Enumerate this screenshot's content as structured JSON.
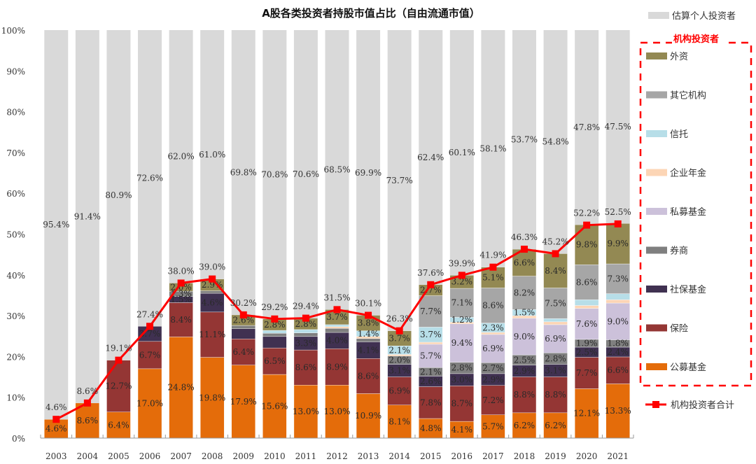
{
  "chart_data": {
    "type": "bar",
    "stacked": true,
    "title": "A股各类投资者持股市值占比（自由流通市值）",
    "xlabel": "",
    "ylabel": "",
    "ylim": [
      0,
      100
    ],
    "yticks": [
      "0%",
      "10%",
      "20%",
      "30%",
      "40%",
      "50%",
      "60%",
      "70%",
      "80%",
      "90%",
      "100%"
    ],
    "grid": false,
    "legend_position": "right",
    "categories": [
      "2003",
      "2004",
      "2005",
      "2006",
      "2007",
      "2008",
      "2009",
      "2010",
      "2011",
      "2012",
      "2013",
      "2014",
      "2015",
      "2016",
      "2017",
      "2018",
      "2019",
      "2020",
      "2021"
    ],
    "series": [
      {
        "name": "公募基金",
        "color": "#E46C0A",
        "values": [
          4.6,
          8.6,
          6.4,
          17.0,
          24.8,
          19.8,
          17.9,
          15.6,
          13.0,
          13.0,
          10.9,
          8.1,
          4.8,
          4.1,
          5.7,
          6.2,
          6.2,
          12.1,
          13.3
        ],
        "labels": [
          "4.6%",
          "8.6%",
          "6.4%",
          "17.0%",
          "24.8%",
          "19.8%",
          "17.9%",
          "15.6%",
          "13.0%",
          "13.0%",
          "10.9%",
          "8.1%",
          "4.8%",
          "4.1%",
          "5.7%",
          "6.2%",
          "6.2%",
          "12.1%",
          "13.3%"
        ]
      },
      {
        "name": "保险",
        "color": "#943634",
        "values": [
          0,
          0,
          12.7,
          6.7,
          8.4,
          11.1,
          6.4,
          6.5,
          8.6,
          8.9,
          8.6,
          6.9,
          7.8,
          8.7,
          7.2,
          8.8,
          8.8,
          7.7,
          6.6
        ],
        "labels": [
          null,
          null,
          "12.7%",
          "6.7%",
          "8.4%",
          "11.1%",
          "6.4%",
          "6.5%",
          "8.6%",
          "8.9%",
          "8.6%",
          "6.9%",
          "7.8%",
          "8.7%",
          "7.2%",
          "8.8%",
          "8.8%",
          "7.7%",
          "6.6%"
        ]
      },
      {
        "name": "社保基金",
        "color": "#403151",
        "values": [
          0,
          0,
          0,
          3.7,
          1.5,
          4.6,
          2.5,
          2.8,
          3.3,
          4.0,
          4.1,
          3.1,
          2.6,
          3.0,
          2.9,
          2.9,
          3.1,
          2.5,
          2.4
        ],
        "labels": [
          null,
          null,
          null,
          "3.7%",
          "1.5%",
          "4.6%",
          null,
          null,
          "3.3%",
          "4.0%",
          "4.1%",
          "3.1%",
          "2.6%",
          "3.0%",
          "2.9%",
          "2.9%",
          "3.1%",
          "2.5%",
          "2.4%"
        ]
      },
      {
        "name": "券商",
        "color": "#7F7F7F",
        "values": [
          0,
          0,
          0,
          0,
          1.3,
          0.6,
          0.8,
          0.8,
          0.9,
          1.0,
          0.8,
          2.0,
          2.1,
          2.8,
          2.7,
          2.5,
          2.8,
          1.9,
          1.8
        ],
        "labels": [
          null,
          null,
          null,
          null,
          "1.3%",
          null,
          null,
          null,
          null,
          null,
          null,
          "2.0%",
          "2.1%",
          "2.8%",
          "2.7%",
          "2.5%",
          "2.8%",
          "1.9%",
          "1.8%"
        ]
      },
      {
        "name": "私募基金",
        "color": "#CCC1DA",
        "values": [
          0,
          0,
          0,
          0,
          0,
          0,
          0,
          0,
          0,
          0,
          0,
          0,
          5.7,
          9.4,
          6.9,
          9.0,
          6.9,
          7.6,
          9.0
        ],
        "labels": [
          null,
          null,
          null,
          null,
          null,
          null,
          null,
          null,
          null,
          null,
          null,
          null,
          "5.7%",
          "9.4%",
          "6.9%",
          "9.0%",
          "6.9%",
          "7.6%",
          "9.0%"
        ]
      },
      {
        "name": "企业年金",
        "color": "#FCD5B5",
        "values": [
          0,
          0,
          0,
          0,
          0,
          0,
          0,
          0,
          0,
          0.4,
          0.5,
          0.4,
          0.5,
          0.4,
          0.5,
          0.6,
          0.7,
          0.7,
          0.8
        ],
        "labels": [
          null,
          null,
          null,
          null,
          null,
          null,
          null,
          null,
          null,
          null,
          null,
          null,
          null,
          null,
          null,
          null,
          null,
          null,
          null
        ]
      },
      {
        "name": "信托",
        "color": "#B7DEE8",
        "values": [
          0,
          0,
          0,
          0,
          0,
          0,
          0,
          0.7,
          0.8,
          0.5,
          1.4,
          2.1,
          3.7,
          1.2,
          2.3,
          1.5,
          0.8,
          1.4,
          1.5
        ],
        "labels": [
          null,
          null,
          null,
          null,
          null,
          null,
          null,
          null,
          null,
          null,
          "1.4%",
          "2.1%",
          "3.7%",
          "1.2%",
          "2.3%",
          "1.5%",
          null,
          null,
          null
        ]
      },
      {
        "name": "其它机构",
        "color": "#A6A6A6",
        "values": [
          0,
          0,
          0,
          0,
          0,
          0,
          0,
          0,
          0,
          0,
          0,
          0,
          7.7,
          7.1,
          8.6,
          8.2,
          7.5,
          8.6,
          7.3
        ],
        "labels": [
          null,
          null,
          null,
          null,
          null,
          null,
          null,
          null,
          null,
          null,
          null,
          null,
          "7.7%",
          "7.1%",
          "8.6%",
          "8.2%",
          "7.5%",
          "8.6%",
          "7.3%"
        ]
      },
      {
        "name": "外资",
        "color": "#938953",
        "values": [
          0,
          0,
          0,
          0,
          2.0,
          2.9,
          2.6,
          2.8,
          2.8,
          3.7,
          3.8,
          3.7,
          2.7,
          3.2,
          5.1,
          6.6,
          8.4,
          9.8,
          9.9
        ],
        "labels": [
          null,
          null,
          null,
          null,
          "2.0%",
          "2.9%",
          "2.6%",
          "2.8%",
          "2.8%",
          "3.7%",
          "3.8%",
          "3.7%",
          "2.7%",
          "3.2%",
          "5.1%",
          "6.6%",
          "8.4%",
          "9.8%",
          "9.9%"
        ]
      },
      {
        "name": "估算个人投资者",
        "color": "#D9D9D9",
        "values": [
          95.4,
          91.4,
          80.9,
          72.6,
          62.0,
          61.0,
          69.8,
          70.8,
          70.6,
          68.5,
          69.9,
          73.7,
          62.4,
          60.1,
          58.1,
          53.7,
          54.8,
          47.8,
          47.5
        ],
        "labels": [
          "95.4%",
          "91.4%",
          "80.9%",
          "72.6%",
          "62.0%",
          "61.0%",
          "69.8%",
          "70.8%",
          "70.6%",
          "68.5%",
          "69.9%",
          "73.7%",
          "62.4%",
          "60.1%",
          "58.1%",
          "53.7%",
          "54.8%",
          "47.8%",
          "47.5%"
        ]
      }
    ],
    "line": {
      "name": "机构投资者合计",
      "color": "#FF0000",
      "values": [
        4.6,
        8.6,
        19.1,
        27.4,
        38.0,
        39.0,
        30.2,
        29.2,
        29.4,
        31.5,
        30.1,
        26.3,
        37.6,
        39.9,
        41.9,
        46.3,
        45.2,
        52.2,
        52.5
      ],
      "labels": [
        "4.6%",
        "8.6%",
        "19.1%",
        "27.4%",
        "38.0%",
        "39.0%",
        "30.2%",
        "29.2%",
        "29.4%",
        "31.5%",
        "30.1%",
        "26.3%",
        "37.6%",
        "39.9%",
        "41.9%",
        "46.3%",
        "45.2%",
        "52.2%",
        "52.5%"
      ]
    },
    "legend": {
      "individual": "估算个人投资者",
      "group_title": "机构投资者",
      "group_items": [
        "外资",
        "其它机构",
        "信托",
        "企业年金",
        "私募基金",
        "券商",
        "社保基金",
        "保险",
        "公募基金"
      ],
      "line_item": "机构投资者合计"
    }
  }
}
